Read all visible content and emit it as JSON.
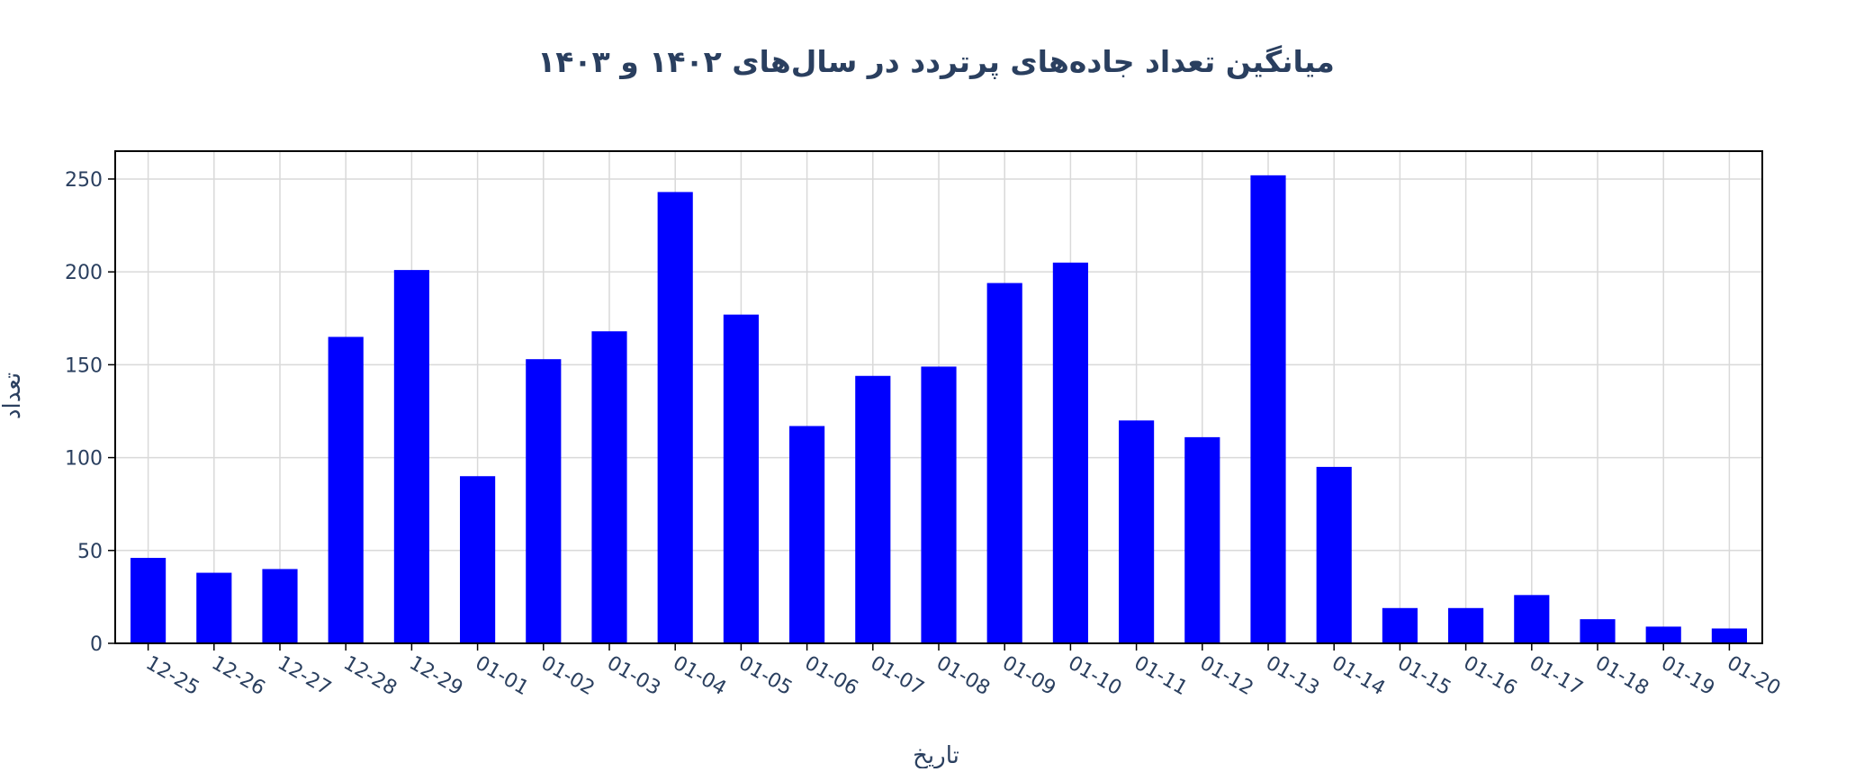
{
  "chart_data": {
    "type": "bar",
    "title": "میانگین تعداد جاده‌های پرتردد در سال‌های ۱۴۰۲ و ۱۴۰۳",
    "xlabel": "تاریخ",
    "ylabel": "تعداد",
    "categories": [
      "12-25",
      "12-26",
      "12-27",
      "12-28",
      "12-29",
      "01-01",
      "01-02",
      "01-03",
      "01-04",
      "01-05",
      "01-06",
      "01-07",
      "01-08",
      "01-09",
      "01-10",
      "01-11",
      "01-12",
      "01-13",
      "01-14",
      "01-15",
      "01-16",
      "01-17",
      "01-18",
      "01-19",
      "01-20"
    ],
    "values": [
      46,
      38,
      40,
      165,
      201,
      90,
      153,
      168,
      243,
      177,
      117,
      144,
      149,
      194,
      205,
      120,
      111,
      252,
      95,
      19,
      19,
      26,
      13,
      9,
      8
    ],
    "ylim": [
      0,
      265
    ],
    "yticks": [
      0,
      50,
      100,
      150,
      200,
      250
    ],
    "grid": true,
    "bar_color": "#0000ff"
  }
}
